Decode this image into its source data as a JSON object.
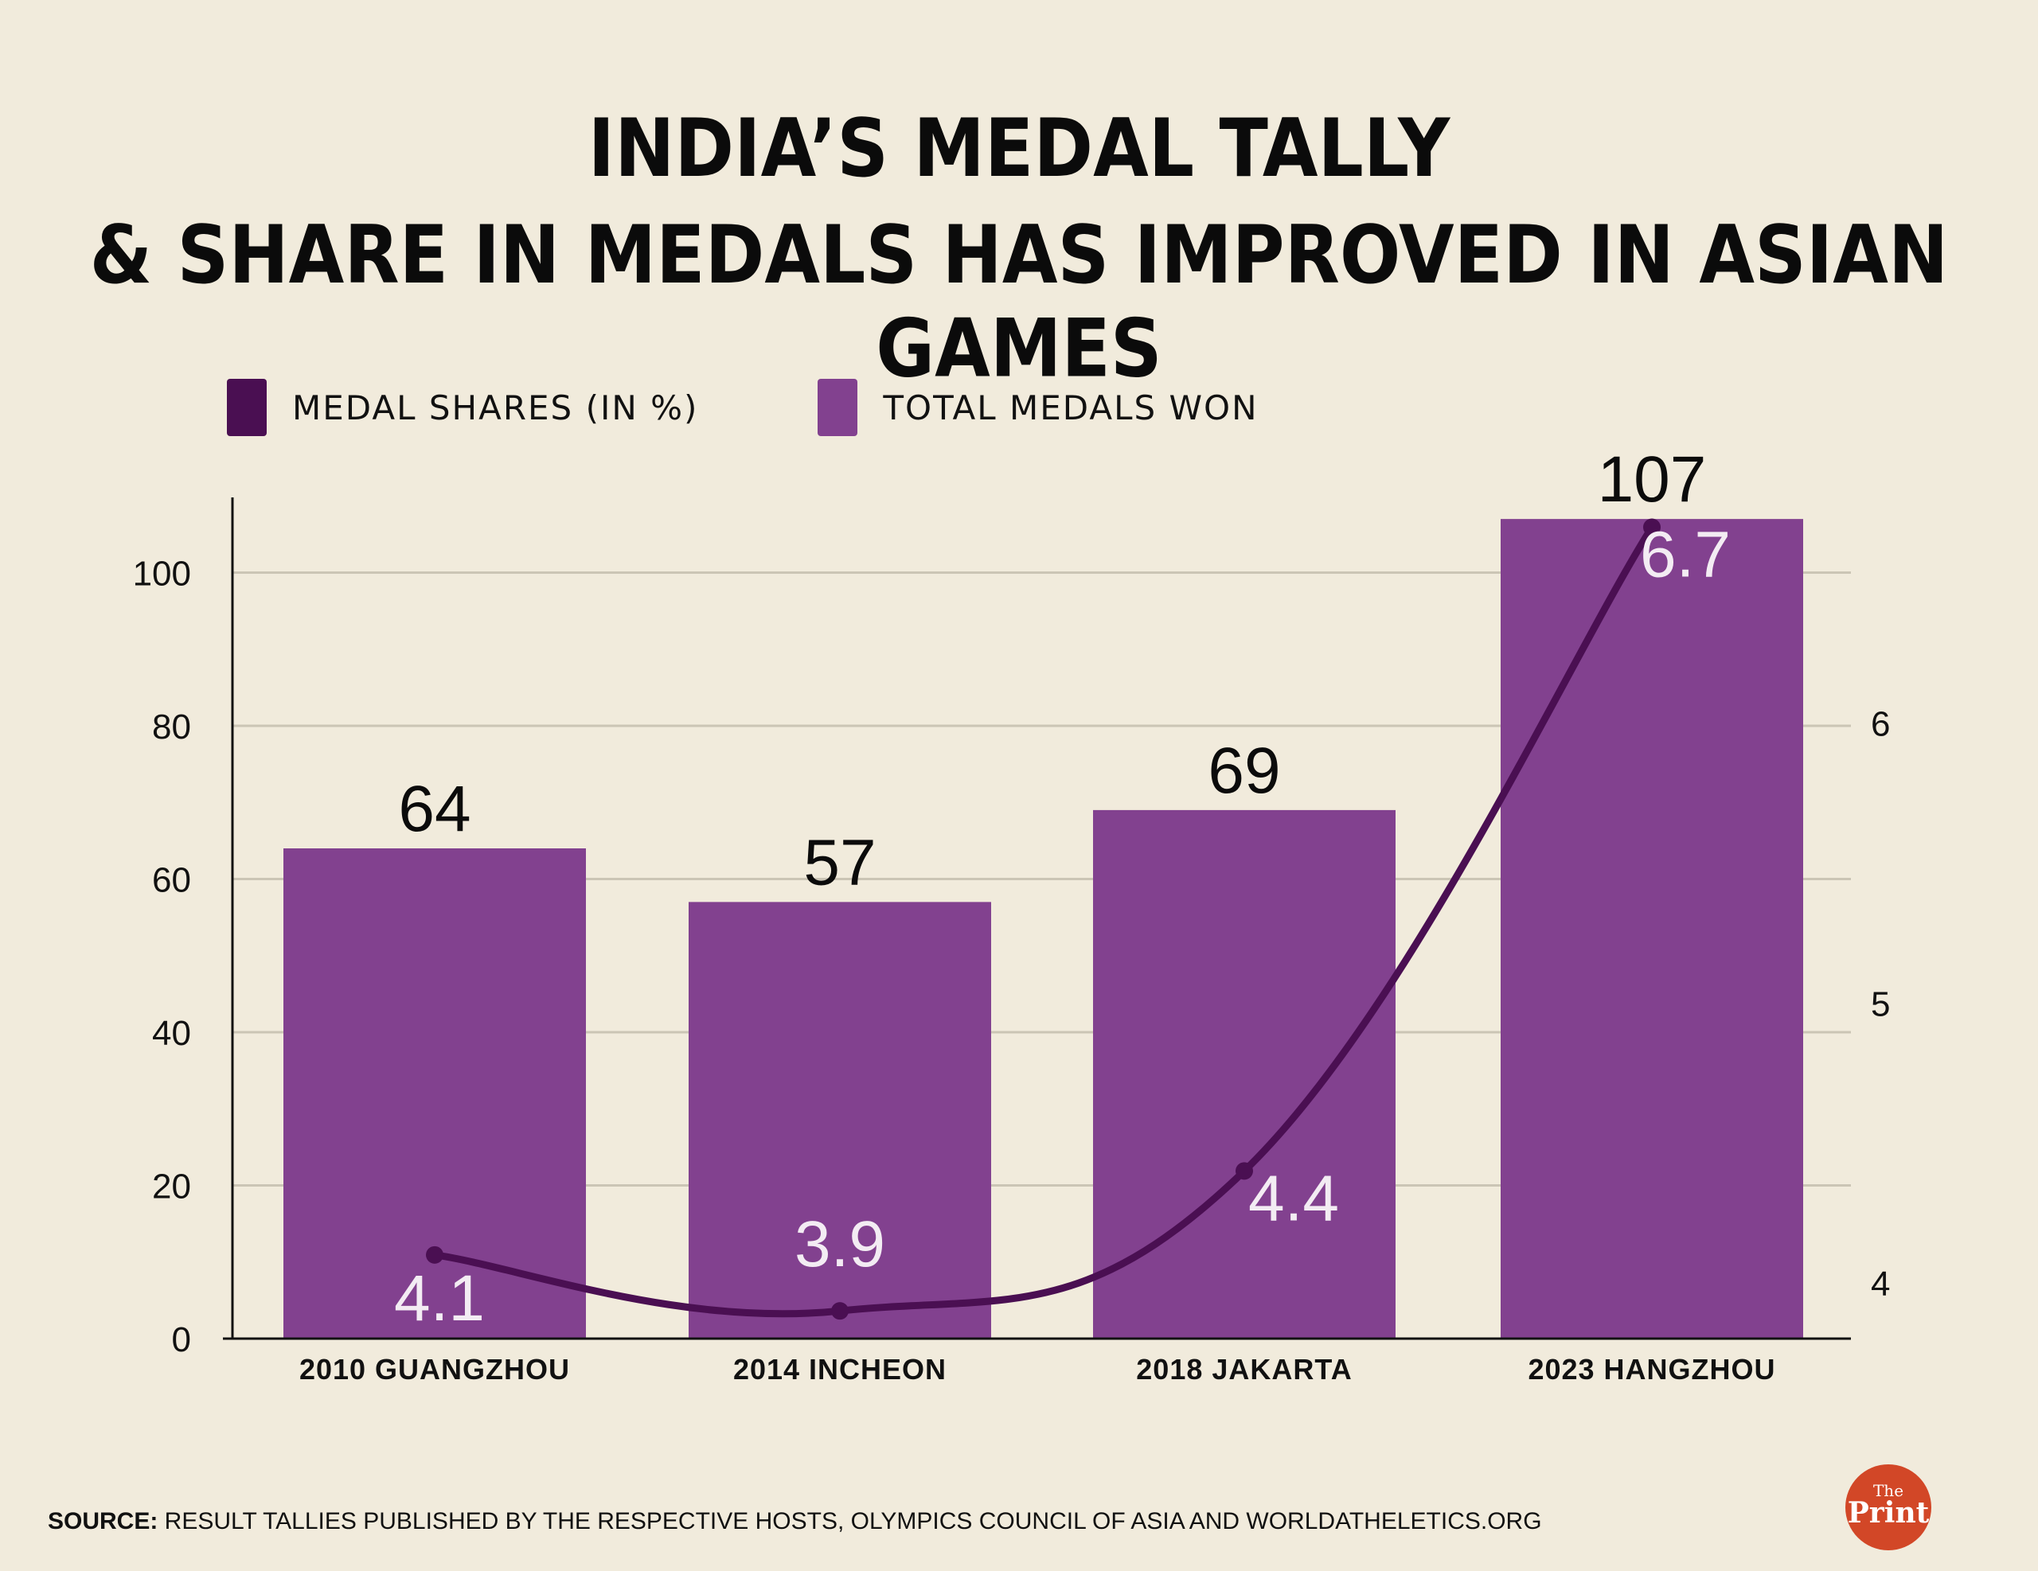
{
  "title": {
    "line1": "INDIA’S MEDAL TALLY",
    "line2": "& SHARE IN MEDALS HAS IMPROVED IN ASIAN GAMES"
  },
  "legend": [
    {
      "label": "MEDAL SHARES (IN %)",
      "color": "#4a0f52"
    },
    {
      "label": "TOTAL MEDALS WON",
      "color": "#82418f"
    }
  ],
  "chart_data": {
    "type": "bar",
    "categories": [
      "2010 GUANGZHOU",
      "2014 INCHEON",
      "2018 JAKARTA",
      "2023 HANGZHOU"
    ],
    "series": [
      {
        "name": "TOTAL MEDALS WON",
        "type": "bar",
        "axis": "left",
        "values": [
          64,
          57,
          69,
          107
        ],
        "color": "#82418f"
      },
      {
        "name": "MEDAL SHARES (IN %)",
        "type": "line",
        "axis": "right",
        "values": [
          4.1,
          3.9,
          4.4,
          6.7
        ],
        "color": "#4a0f52"
      }
    ],
    "y_left": {
      "ylim": [
        0,
        110
      ],
      "ticks": [
        0,
        20,
        40,
        60,
        80,
        100
      ]
    },
    "y_right": {
      "ylim": [
        3.8,
        6.8
      ],
      "ticks": [
        4,
        5,
        6
      ]
    },
    "grid": true,
    "legend_position": "top-left"
  },
  "source": {
    "label": "SOURCE:",
    "text": " RESULT TALLIES PUBLISHED BY THE RESPECTIVE HOSTS, OLYMPICS COUNCIL OF ASIA AND WORLDATHELETICS.ORG"
  },
  "logo": {
    "the": "The",
    "print": "Print"
  }
}
